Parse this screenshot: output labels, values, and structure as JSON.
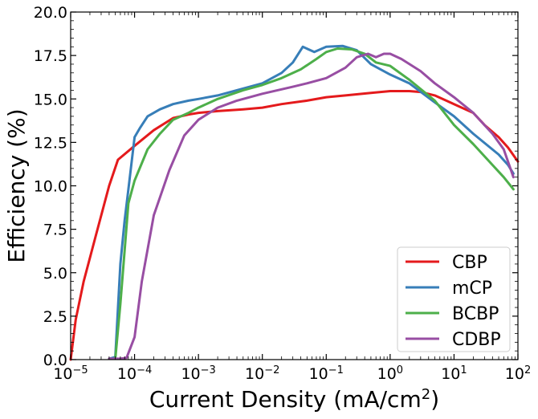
{
  "chart_data": {
    "type": "line",
    "xlabel_main": "Current Density (mA/cm",
    "xlabel_sup": "2",
    "xlabel_tail": ")",
    "ylabel": "Efficiency (%)",
    "xscale": "log",
    "xlim": [
      1e-05,
      100
    ],
    "ylim": [
      0,
      20
    ],
    "x_ticks": [
      {
        "base": "10",
        "exp": "−5",
        "value": 1e-05
      },
      {
        "base": "10",
        "exp": "−4",
        "value": 0.0001
      },
      {
        "base": "10",
        "exp": "−3",
        "value": 0.001
      },
      {
        "base": "10",
        "exp": "−2",
        "value": 0.01
      },
      {
        "base": "10",
        "exp": "−1",
        "value": 0.1
      },
      {
        "base": "10",
        "exp": "0",
        "value": 1
      },
      {
        "base": "10",
        "exp": "1",
        "value": 10
      },
      {
        "base": "10",
        "exp": "2",
        "value": 100
      }
    ],
    "y_ticks": [
      "0.0",
      "2.5",
      "5.0",
      "7.5",
      "10.0",
      "12.5",
      "15.0",
      "17.5",
      "20.0"
    ],
    "legend_position": "bottom-right",
    "grid": false,
    "series": [
      {
        "name": "CBP",
        "color": "#e41a1c",
        "x": [
          1e-05,
          1.2e-05,
          1.6e-05,
          2.5e-05,
          4e-05,
          5.5e-05,
          0.0001,
          0.0002,
          0.0004,
          0.0007,
          0.001,
          0.002,
          0.005,
          0.01,
          0.02,
          0.05,
          0.1,
          0.2,
          0.5,
          1,
          2,
          3,
          5,
          10,
          20,
          30,
          50,
          70,
          100
        ],
        "y": [
          0.0,
          2.3,
          4.5,
          7.2,
          10.0,
          11.5,
          12.3,
          13.2,
          13.9,
          14.1,
          14.2,
          14.3,
          14.4,
          14.5,
          14.7,
          14.9,
          15.1,
          15.2,
          15.35,
          15.45,
          15.45,
          15.4,
          15.2,
          14.7,
          14.2,
          13.5,
          12.8,
          12.2,
          11.4
        ]
      },
      {
        "name": "mCP",
        "color": "#377eb8",
        "x": [
          4e-05,
          5e-05,
          6e-05,
          7e-05,
          8e-05,
          0.0001,
          0.00012,
          0.00016,
          0.00025,
          0.0004,
          0.0007,
          0.001,
          0.002,
          0.005,
          0.01,
          0.02,
          0.03,
          0.043,
          0.065,
          0.1,
          0.18,
          0.3,
          0.5,
          1,
          2,
          5,
          10,
          20,
          50,
          70,
          85
        ],
        "y": [
          0.05,
          0.15,
          5.5,
          8.0,
          9.8,
          12.8,
          13.3,
          14.0,
          14.4,
          14.7,
          14.9,
          15.0,
          15.2,
          15.6,
          15.9,
          16.5,
          17.1,
          18.0,
          17.7,
          18.0,
          18.05,
          17.8,
          17.0,
          16.4,
          15.9,
          14.8,
          14.0,
          13.0,
          11.8,
          11.2,
          10.7
        ]
      },
      {
        "name": "BCBP",
        "color": "#4daf4a",
        "x": [
          5e-05,
          6e-05,
          8e-05,
          0.0001,
          0.00016,
          0.00025,
          0.0004,
          0.0007,
          0.001,
          0.002,
          0.005,
          0.01,
          0.02,
          0.04,
          0.07,
          0.1,
          0.15,
          0.25,
          0.4,
          0.6,
          1,
          2,
          5,
          10,
          20,
          40,
          60,
          85
        ],
        "y": [
          0.05,
          3.2,
          9.0,
          10.3,
          12.1,
          13.0,
          13.8,
          14.2,
          14.5,
          15.0,
          15.5,
          15.8,
          16.2,
          16.7,
          17.3,
          17.7,
          17.9,
          17.85,
          17.6,
          17.1,
          16.9,
          16.1,
          14.9,
          13.5,
          12.4,
          11.2,
          10.5,
          9.8
        ]
      },
      {
        "name": "CDBP",
        "color": "#984ea3",
        "x": [
          4e-05,
          6e-05,
          7.5e-05,
          0.0001,
          0.00013,
          0.0002,
          0.00035,
          0.0006,
          0.001,
          0.002,
          0.004,
          0.01,
          0.03,
          0.05,
          0.1,
          0.2,
          0.3,
          0.45,
          0.6,
          0.8,
          1,
          1.5,
          3,
          5,
          10,
          20,
          40,
          60,
          85
        ],
        "y": [
          0.05,
          0.05,
          0.1,
          1.3,
          4.5,
          8.3,
          10.9,
          12.9,
          13.8,
          14.5,
          14.9,
          15.3,
          15.7,
          15.9,
          16.2,
          16.8,
          17.4,
          17.6,
          17.4,
          17.6,
          17.6,
          17.3,
          16.6,
          15.9,
          15.1,
          14.2,
          13.0,
          12.1,
          10.5
        ]
      }
    ]
  }
}
